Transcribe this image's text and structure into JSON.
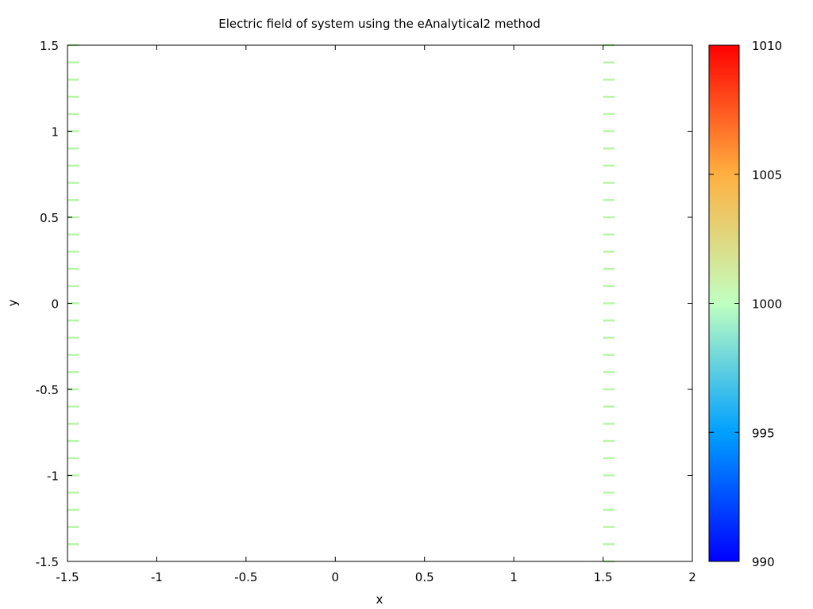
{
  "chart_data": {
    "type": "vector-field",
    "title": "Electric field of system using the eAnalytical2 method",
    "xlabel": "x",
    "ylabel": "y",
    "xlim": [
      -1.5,
      2
    ],
    "ylim": [
      -1.5,
      1.5
    ],
    "xticks": [
      -1.5,
      -1,
      -0.5,
      0,
      0.5,
      1,
      1.5,
      2
    ],
    "xtick_labels": [
      "-1.5",
      "-1",
      "-0.5",
      "0",
      "0.5",
      "1",
      "1.5",
      "2"
    ],
    "yticks": [
      -1.5,
      -1,
      -0.5,
      0,
      0.5,
      1,
      1.5
    ],
    "ytick_labels": [
      "-1.5",
      "-1",
      "-0.5",
      "0",
      "0.5",
      "1",
      "1.5"
    ],
    "grid": false,
    "colorbar": {
      "range": [
        990,
        1010
      ],
      "ticks": [
        990,
        995,
        1000,
        1005,
        1010
      ],
      "tick_labels": [
        "990",
        "995",
        "1000",
        "1005",
        "1010"
      ],
      "colormap": "jet",
      "colors": [
        "#0000ff",
        "#00a0ff",
        "#c0ffc0",
        "#ffb040",
        "#ff0000"
      ]
    },
    "vector_color": "#b8f5a8",
    "vector_magnitude": 1000,
    "vector_dx": 0.065,
    "series": [
      {
        "x": -1.5,
        "y": [
          -1.4,
          -1.3,
          -1.2,
          -1.1,
          -1.0,
          -0.9,
          -0.8,
          -0.7,
          -0.6,
          -0.5,
          -0.4,
          -0.3,
          -0.2,
          -0.1,
          0.0,
          0.1,
          0.2,
          0.3,
          0.4,
          0.5,
          0.6,
          0.7,
          0.8,
          0.9,
          1.0,
          1.1,
          1.2,
          1.3,
          1.4,
          1.5
        ]
      },
      {
        "x": 1.5,
        "y": [
          -1.5,
          -1.4,
          -1.3,
          -1.2,
          -1.1,
          -1.0,
          -0.9,
          -0.8,
          -0.7,
          -0.6,
          -0.5,
          -0.4,
          -0.3,
          -0.2,
          -0.1,
          0.0,
          0.1,
          0.2,
          0.3,
          0.4,
          0.5,
          0.6,
          0.7,
          0.8,
          0.9,
          1.0,
          1.1,
          1.2,
          1.3,
          1.4,
          1.5
        ]
      }
    ]
  }
}
